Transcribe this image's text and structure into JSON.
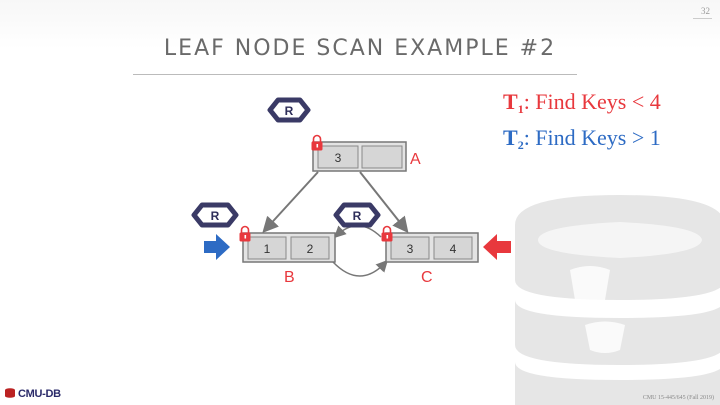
{
  "slide_number": "32",
  "title": "LEAF NODE SCAN EXAMPLE #2",
  "queries": [
    {
      "txn": "T",
      "sub": "1",
      "text": ": Find Keys < 4",
      "color": "#e8383d"
    },
    {
      "txn": "T",
      "sub": "2",
      "text": ": Find Keys > 1",
      "color": "#2d6bc4"
    }
  ],
  "tree": {
    "root": {
      "label": "A",
      "keys": [
        "3",
        ""
      ]
    },
    "leaves": [
      {
        "label": "B",
        "keys": [
          "1",
          "2"
        ]
      },
      {
        "label": "C",
        "keys": [
          "3",
          "4"
        ]
      }
    ]
  },
  "latches": [
    {
      "mode": "R",
      "node": "A"
    },
    {
      "mode": "R",
      "node": "B"
    },
    {
      "mode": "R",
      "node": "C"
    }
  ],
  "colors": {
    "t1": "#e8383d",
    "t2": "#2d6bc4",
    "latch": "#3a3a66",
    "lock": "#e8383d"
  },
  "footer": {
    "logo": "CMU-DB",
    "course": "CMU 15-445/645 (Fall 2019)"
  }
}
